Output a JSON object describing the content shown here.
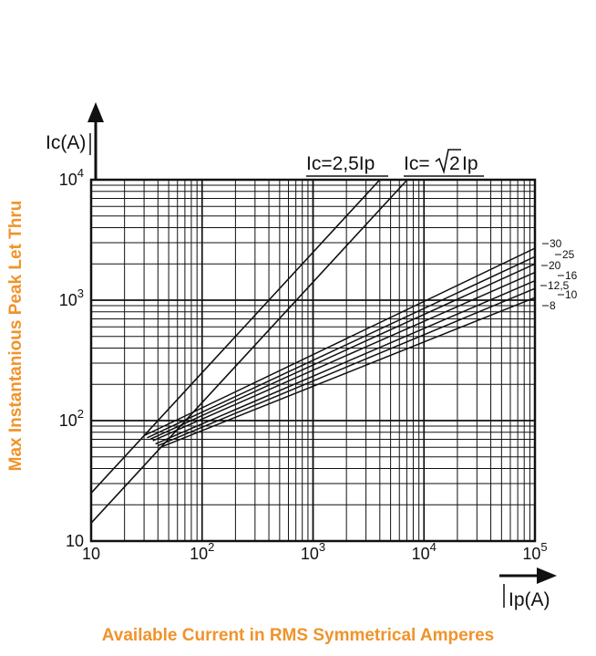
{
  "side_title": "Max Instantanious Peak Let Thru",
  "bottom_title": "Available Current in RMS Symmetrical Amperes",
  "colors": {
    "ink": "#111111",
    "accent": "#f0932b",
    "background": "#ffffff"
  },
  "chart_data": {
    "type": "line",
    "xscale": "log",
    "yscale": "log",
    "xlim": [
      10,
      100000
    ],
    "ylim": [
      10,
      10000
    ],
    "grid": true,
    "xlabel": "Ip(A)",
    "ylabel": "Ic(A)",
    "x_tick_labels": [
      {
        "value": 10,
        "base": "10",
        "exp": ""
      },
      {
        "value": 100,
        "base": "10",
        "exp": "2"
      },
      {
        "value": 1000,
        "base": "10",
        "exp": "3"
      },
      {
        "value": 10000,
        "base": "10",
        "exp": "4"
      },
      {
        "value": 100000,
        "base": "10",
        "exp": "5"
      }
    ],
    "y_tick_labels": [
      {
        "value": 10,
        "base": "10",
        "exp": ""
      },
      {
        "value": 100,
        "base": "10",
        "exp": "2"
      },
      {
        "value": 1000,
        "base": "10",
        "exp": "3"
      },
      {
        "value": 10000,
        "base": "10",
        "exp": "4"
      }
    ],
    "reference_lines": [
      {
        "label": "Ic=2,5Ip",
        "x": [
          10,
          4000
        ],
        "y": [
          25,
          10000
        ]
      },
      {
        "label_base": "Ic=",
        "label_root": "2",
        "label_tail": "Ip",
        "x": [
          10,
          7071
        ],
        "y": [
          14.1,
          10000
        ]
      }
    ],
    "series": [
      {
        "name": "30",
        "x": [
          30,
          100000
        ],
        "y": [
          75,
          2700
        ]
      },
      {
        "name": "25",
        "x": [
          32,
          100000
        ],
        "y": [
          72,
          2300
        ]
      },
      {
        "name": "20",
        "x": [
          34,
          100000
        ],
        "y": [
          70,
          2000
        ]
      },
      {
        "name": "16",
        "x": [
          36,
          100000
        ],
        "y": [
          68,
          1700
        ]
      },
      {
        "name": "12,5",
        "x": [
          38,
          100000
        ],
        "y": [
          64,
          1450
        ]
      },
      {
        "name": "10",
        "x": [
          40,
          100000
        ],
        "y": [
          62,
          1250
        ]
      },
      {
        "name": "8",
        "x": [
          42,
          100000
        ],
        "y": [
          60,
          1050
        ]
      }
    ]
  }
}
